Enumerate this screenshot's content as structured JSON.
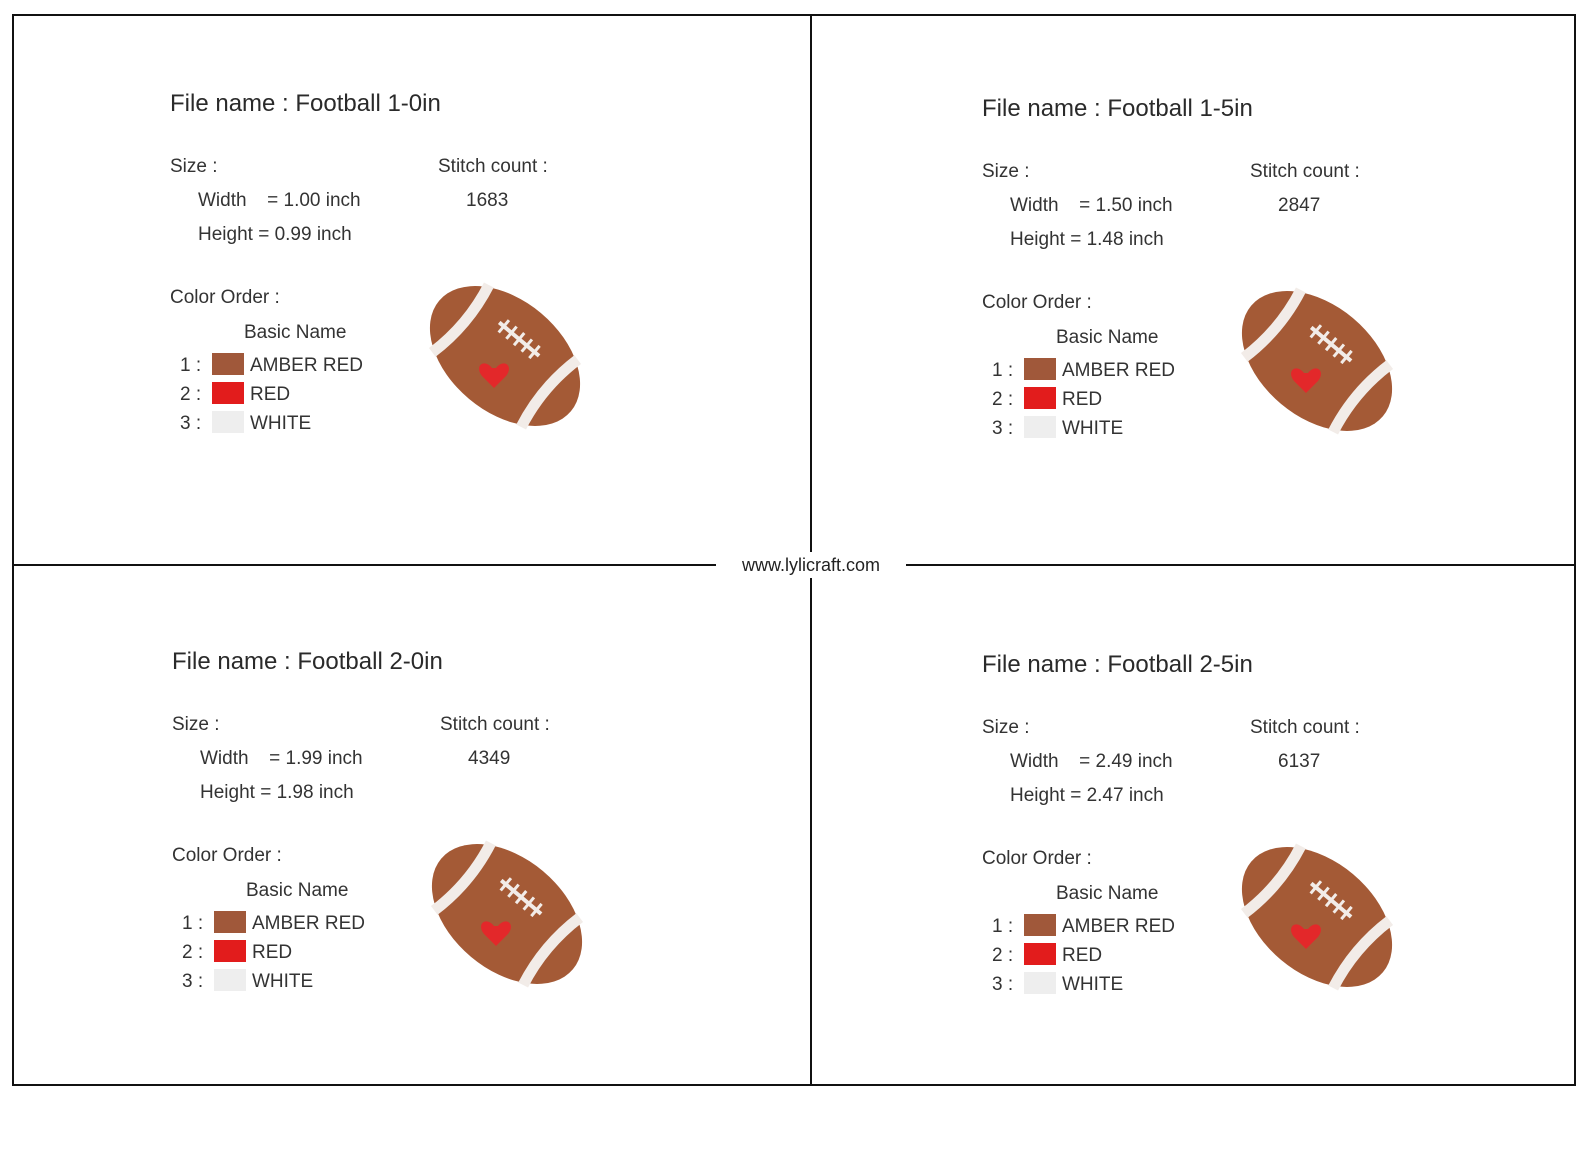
{
  "site": "www.lylicraft.com",
  "labels": {
    "file_name": "File name :",
    "size": "Size :",
    "stitch_count": "Stitch count :",
    "width": "Width",
    "height": "Height",
    "color_order": "Color Order :",
    "basic_name": "Basic Name"
  },
  "colors": {
    "amber_red": "#a0583a",
    "red": "#e21c1c",
    "white": "#eeeeee",
    "ball": "#a45a36",
    "lace": "#f2ece8",
    "heart": "#e3282a"
  },
  "panels": [
    {
      "file": "Football 1-0in",
      "width": "= 1.00 inch",
      "height": "= 0.99 inch",
      "stitch": "1683",
      "colors": [
        {
          "num": "1 :",
          "name": "AMBER RED"
        },
        {
          "num": "2 :",
          "name": "RED"
        },
        {
          "num": "3 :",
          "name": "WHITE"
        }
      ]
    },
    {
      "file": "Football 1-5in",
      "width": "= 1.50 inch",
      "height": "= 1.48 inch",
      "stitch": "2847",
      "colors": [
        {
          "num": "1 :",
          "name": "AMBER RED"
        },
        {
          "num": "2 :",
          "name": "RED"
        },
        {
          "num": "3 :",
          "name": "WHITE"
        }
      ]
    },
    {
      "file": "Football 2-0in",
      "width": "= 1.99 inch",
      "height": "= 1.98 inch",
      "stitch": "4349",
      "colors": [
        {
          "num": "1 :",
          "name": "AMBER RED"
        },
        {
          "num": "2 :",
          "name": "RED"
        },
        {
          "num": "3 :",
          "name": "WHITE"
        }
      ]
    },
    {
      "file": "Football 2-5in",
      "width": "= 2.49 inch",
      "height": "= 2.47 inch",
      "stitch": "6137",
      "colors": [
        {
          "num": "1 :",
          "name": "AMBER RED"
        },
        {
          "num": "2 :",
          "name": "RED"
        },
        {
          "num": "3 :",
          "name": "WHITE"
        }
      ]
    }
  ]
}
